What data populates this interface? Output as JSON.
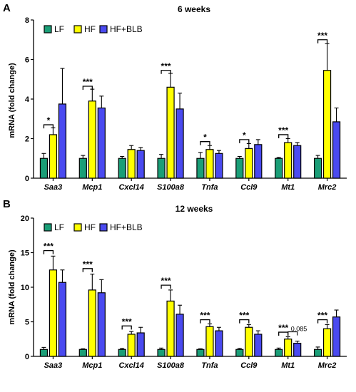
{
  "colors": {
    "LF": "#1a9e77",
    "HF": "#ffff00",
    "HF+BLB": "#4a4af0"
  },
  "chart_data": [
    {
      "panel": "A",
      "type": "bar",
      "title": "6 weeks",
      "ylabel": "mRNA (fold change)",
      "xlabel": "",
      "ylim": [
        0,
        8
      ],
      "yticks": [
        "0",
        "2",
        "4",
        "6",
        "8"
      ],
      "legend": [
        "LF",
        "HF",
        "HF+BLB"
      ],
      "legend_position": "top-left",
      "categories": [
        "Saa3",
        "Mcp1",
        "Cxcl14",
        "S100a8",
        "Tnfa",
        "Ccl9",
        "Mt1",
        "Mrc2"
      ],
      "series": [
        {
          "name": "LF",
          "values": [
            1.0,
            1.0,
            1.0,
            1.0,
            1.0,
            1.0,
            1.0,
            1.0
          ],
          "errors": [
            0.25,
            0.15,
            0.1,
            0.2,
            0.3,
            0.1,
            0.05,
            0.15
          ]
        },
        {
          "name": "HF",
          "values": [
            2.2,
            3.9,
            1.45,
            4.6,
            1.45,
            1.5,
            1.8,
            5.45
          ],
          "errors": [
            0.35,
            0.6,
            0.2,
            0.7,
            0.2,
            0.25,
            0.2,
            1.35
          ]
        },
        {
          "name": "HF+BLB",
          "values": [
            3.75,
            3.55,
            1.4,
            3.5,
            1.25,
            1.7,
            1.65,
            2.85
          ],
          "errors": [
            1.8,
            0.6,
            0.15,
            0.8,
            0.15,
            0.25,
            0.15,
            0.7
          ]
        }
      ],
      "annotations": [
        {
          "text": "*",
          "category_index": 0,
          "y": 2.7
        },
        {
          "text": "***",
          "category_index": 1,
          "y": 4.65
        },
        {
          "text": "***",
          "category_index": 3,
          "y": 5.45
        },
        {
          "text": "*",
          "category_index": 4,
          "y": 1.85
        },
        {
          "text": "*",
          "category_index": 5,
          "y": 1.95
        },
        {
          "text": "***",
          "category_index": 6,
          "y": 2.2
        },
        {
          "text": "***",
          "category_index": 7,
          "y": 7.0
        }
      ]
    },
    {
      "panel": "B",
      "type": "bar",
      "title": "12 weeks",
      "ylabel": "mRNA (fold change)",
      "xlabel": "",
      "ylim": [
        0,
        20
      ],
      "yticks": [
        "0",
        "5",
        "10",
        "15",
        "20"
      ],
      "legend": [
        "LF",
        "HF",
        "HF+BLB"
      ],
      "legend_position": "top-left",
      "categories": [
        "Saa3",
        "Mcp1",
        "Cxcl14",
        "S100a8",
        "Tnfa",
        "Ccl9",
        "Mt1",
        "Mrc2"
      ],
      "series": [
        {
          "name": "LF",
          "values": [
            1.0,
            1.0,
            1.0,
            1.0,
            1.0,
            1.0,
            1.0,
            1.0
          ],
          "errors": [
            0.3,
            0.1,
            0.15,
            0.2,
            0.1,
            0.15,
            0.2,
            0.35
          ]
        },
        {
          "name": "HF",
          "values": [
            12.5,
            9.6,
            3.2,
            8.0,
            4.3,
            4.2,
            2.5,
            4.0
          ],
          "errors": [
            2.0,
            2.3,
            0.4,
            1.6,
            0.4,
            0.4,
            0.35,
            0.6
          ]
        },
        {
          "name": "HF+BLB",
          "values": [
            10.7,
            9.2,
            3.4,
            6.1,
            3.7,
            3.2,
            1.9,
            5.7
          ],
          "errors": [
            1.8,
            1.9,
            0.8,
            1.3,
            0.5,
            0.5,
            0.3,
            1.0
          ]
        }
      ],
      "annotations": [
        {
          "text": "***",
          "category_index": 0,
          "y": 15.3
        },
        {
          "text": "***",
          "category_index": 1,
          "y": 12.7
        },
        {
          "text": "***",
          "category_index": 2,
          "y": 4.4
        },
        {
          "text": "***",
          "category_index": 3,
          "y": 10.3
        },
        {
          "text": "***",
          "category_index": 4,
          "y": 5.3
        },
        {
          "text": "***",
          "category_index": 5,
          "y": 5.3
        },
        {
          "text": "***",
          "category_index": 6,
          "y": 3.5
        },
        {
          "text": "***",
          "category_index": 7,
          "y": 5.3
        }
      ],
      "extra_annotations": [
        {
          "text": "0.085",
          "category_index": 6,
          "y": 3.55
        }
      ]
    }
  ]
}
